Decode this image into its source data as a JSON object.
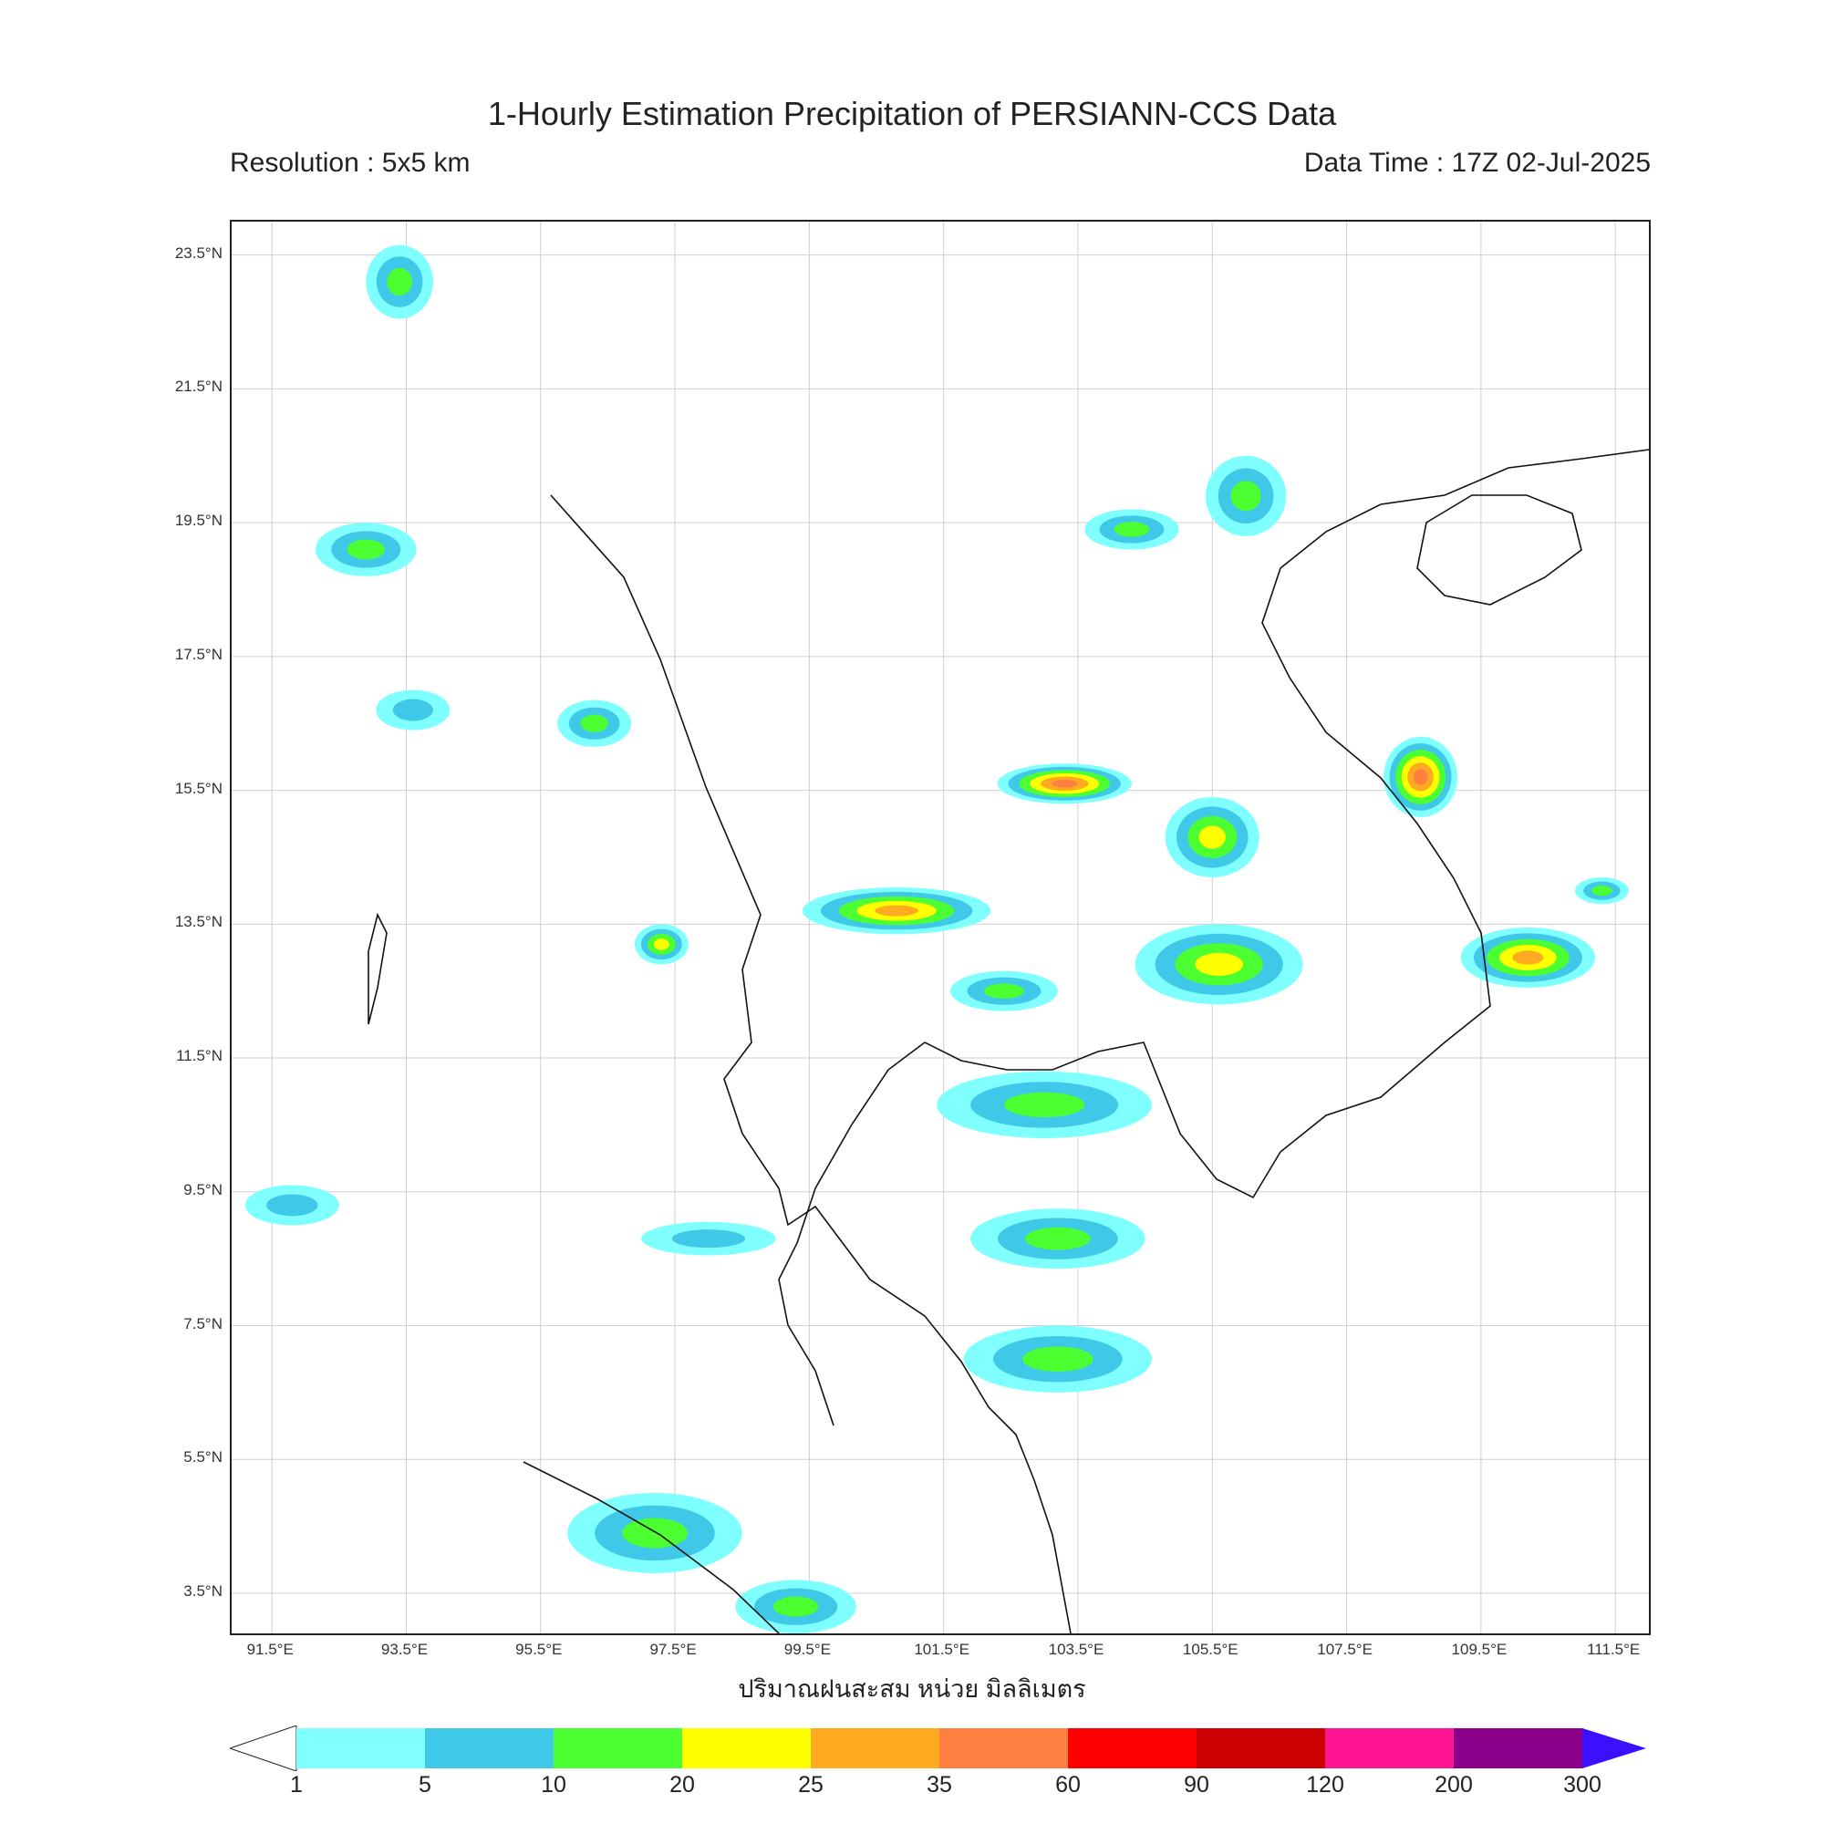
{
  "header": {
    "title": "1-Hourly Estimation Precipitation of PERSIANN-CCS Data",
    "resolution": "Resolution : 5x5 km",
    "data_time": "Data Time : 17Z 02-Jul-2025"
  },
  "axes": {
    "lat_labels": [
      "23.5°N",
      "21.5°N",
      "19.5°N",
      "17.5°N",
      "15.5°N",
      "13.5°N",
      "11.5°N",
      "9.5°N",
      "7.5°N",
      "5.5°N",
      "3.5°N"
    ],
    "lon_labels": [
      "91.5°E",
      "93.5°E",
      "95.5°E",
      "97.5°E",
      "99.5°E",
      "101.5°E",
      "103.5°E",
      "105.5°E",
      "107.5°E",
      "109.5°E",
      "111.5°E"
    ]
  },
  "colorbar": {
    "title": "ปริมาณฝนสะสม หน่วย มิลลิเมตร",
    "ticks": [
      "1",
      "5",
      "10",
      "20",
      "25",
      "35",
      "60",
      "90",
      "120",
      "200",
      "300"
    ],
    "colors": [
      "#80ffff",
      "#40c8e8",
      "#4cff30",
      "#ffff00",
      "#ffaa20",
      "#ff7f40",
      "#ff0000",
      "#cc0000",
      "#ff1493",
      "#8b008b",
      "#3a10ff"
    ],
    "under_color": "#ffffff"
  },
  "rain_cells": [
    {
      "lon": 92.9,
      "lat": 19.1,
      "rx": 0.75,
      "ry": 0.4,
      "level": 2
    },
    {
      "lon": 93.4,
      "lat": 23.1,
      "rx": 0.5,
      "ry": 0.55,
      "level": 2
    },
    {
      "lon": 93.6,
      "lat": 16.7,
      "rx": 0.55,
      "ry": 0.3,
      "level": 1
    },
    {
      "lon": 96.3,
      "lat": 16.5,
      "rx": 0.55,
      "ry": 0.35,
      "level": 2
    },
    {
      "lon": 97.3,
      "lat": 13.2,
      "rx": 0.4,
      "ry": 0.3,
      "level": 3
    },
    {
      "lon": 100.8,
      "lat": 13.7,
      "rx": 1.4,
      "ry": 0.35,
      "level": 4
    },
    {
      "lon": 103.3,
      "lat": 15.6,
      "rx": 1.0,
      "ry": 0.3,
      "level": 5
    },
    {
      "lon": 105.5,
      "lat": 14.8,
      "rx": 0.7,
      "ry": 0.6,
      "level": 3
    },
    {
      "lon": 105.6,
      "lat": 12.9,
      "rx": 1.25,
      "ry": 0.6,
      "level": 3
    },
    {
      "lon": 103.0,
      "lat": 10.8,
      "rx": 1.6,
      "ry": 0.5,
      "level": 2
    },
    {
      "lon": 103.2,
      "lat": 8.8,
      "rx": 1.3,
      "ry": 0.45,
      "level": 2
    },
    {
      "lon": 103.2,
      "lat": 7.0,
      "rx": 1.4,
      "ry": 0.5,
      "level": 2
    },
    {
      "lon": 108.6,
      "lat": 15.7,
      "rx": 0.55,
      "ry": 0.6,
      "level": 5
    },
    {
      "lon": 110.2,
      "lat": 13.0,
      "rx": 1.0,
      "ry": 0.45,
      "level": 4
    },
    {
      "lon": 104.3,
      "lat": 19.4,
      "rx": 0.7,
      "ry": 0.3,
      "level": 2
    },
    {
      "lon": 106.0,
      "lat": 19.9,
      "rx": 0.6,
      "ry": 0.6,
      "level": 2
    },
    {
      "lon": 97.2,
      "lat": 4.4,
      "rx": 1.3,
      "ry": 0.6,
      "level": 2
    },
    {
      "lon": 99.3,
      "lat": 3.3,
      "rx": 0.9,
      "ry": 0.4,
      "level": 2
    },
    {
      "lon": 91.8,
      "lat": 9.3,
      "rx": 0.7,
      "ry": 0.3,
      "level": 1
    },
    {
      "lon": 98.0,
      "lat": 8.8,
      "rx": 1.0,
      "ry": 0.25,
      "level": 1
    },
    {
      "lon": 102.4,
      "lat": 12.5,
      "rx": 0.8,
      "ry": 0.3,
      "level": 2
    },
    {
      "lon": 111.3,
      "lat": 14.0,
      "rx": 0.4,
      "ry": 0.2,
      "level": 2
    }
  ]
}
